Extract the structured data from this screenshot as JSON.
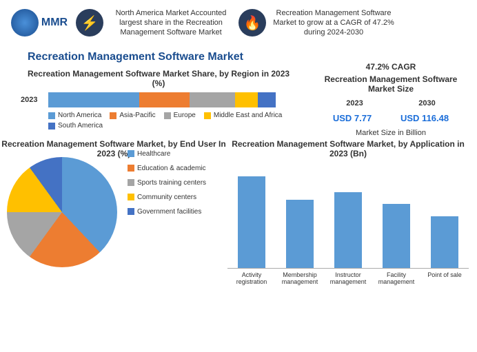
{
  "header": {
    "logo_text": "MMR",
    "fact1": "North America Market Accounted largest share in the Recreation Management Software Market",
    "fact2": "Recreation Management Software Market to grow at a CAGR of 47.2% during 2024-2030"
  },
  "main_title": "Recreation Management Software Market",
  "market_size": {
    "cagr_label": "47.2% CAGR",
    "title": "Recreation Management Software Market Size",
    "year1": "2023",
    "year2": "2030",
    "value1": "USD 7.77",
    "value2": "USD 116.48",
    "note": "Market Size in Billion"
  },
  "stacked_chart": {
    "title": "Recreation Management Software Market Share, by Region in 2023 (%)",
    "row_label": "2023",
    "segments": [
      {
        "name": "North America",
        "pct": 40,
        "color": "#5b9bd5"
      },
      {
        "name": "Asia-Pacific",
        "pct": 22,
        "color": "#ed7d31"
      },
      {
        "name": "Europe",
        "pct": 20,
        "color": "#a5a5a5"
      },
      {
        "name": "Middle East and Africa",
        "pct": 10,
        "color": "#ffc000"
      },
      {
        "name": "South America",
        "pct": 8,
        "color": "#4472c4"
      }
    ]
  },
  "pie_chart": {
    "title": "Recreation Management Software Market, by End User In 2023 (%)",
    "segments": [
      {
        "name": "Healthcare",
        "pct": 38,
        "color": "#5b9bd5"
      },
      {
        "name": "Education & academic",
        "pct": 22,
        "color": "#ed7d31"
      },
      {
        "name": "Sports training centers",
        "pct": 15,
        "color": "#a5a5a5"
      },
      {
        "name": "Community centers",
        "pct": 15,
        "color": "#ffc000"
      },
      {
        "name": "Government facilities",
        "pct": 10,
        "color": "#4472c4"
      }
    ]
  },
  "bar_chart": {
    "title": "Recreation Management Software Market, by Application in 2023 (Bn)",
    "bar_color": "#5b9bd5",
    "max_value": 2.5,
    "items": [
      {
        "label": "Activity registration",
        "value": 2.3
      },
      {
        "label": "Membership management",
        "value": 1.7
      },
      {
        "label": "Instructor management",
        "value": 1.9
      },
      {
        "label": "Facility management",
        "value": 1.6
      },
      {
        "label": "Point of sale",
        "value": 1.3
      }
    ]
  }
}
